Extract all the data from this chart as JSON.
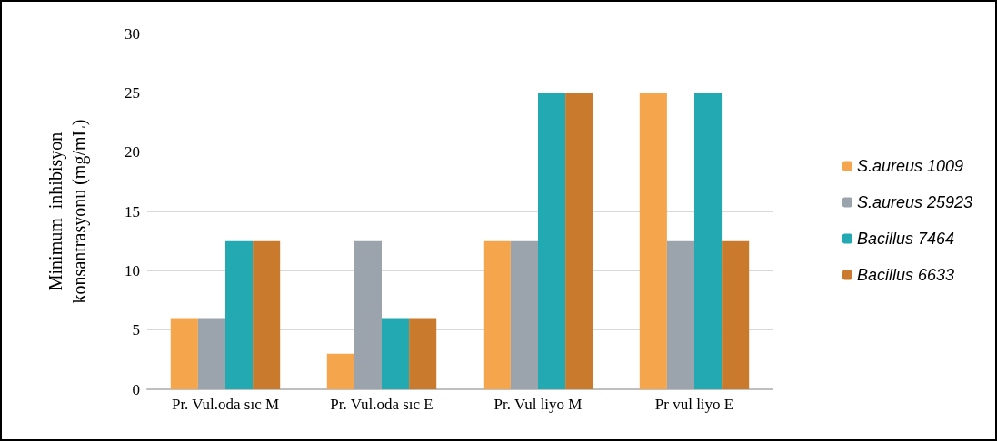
{
  "chart_data": {
    "type": "bar",
    "ylabel": "Minimum  inhibisyon\nkonsantrasyonu (mg/mL)",
    "categories": [
      "Pr. Vul.oda sıc M",
      "Pr. Vul.oda sıc E",
      "Pr. Vul liyo M",
      "Pr vul liyo E"
    ],
    "series": [
      {
        "name": "S.aureus 1009",
        "color": "#f5a64c",
        "values": [
          6,
          3,
          12.5,
          25
        ]
      },
      {
        "name": "S.aureus 25923",
        "color": "#9ba4ac",
        "values": [
          6,
          12.5,
          12.5,
          12.5
        ]
      },
      {
        "name": "Bacillus 7464",
        "color": "#22a9b1",
        "values": [
          12.5,
          6,
          25,
          25
        ]
      },
      {
        "name": "Bacillus 6633",
        "color": "#c97a2c",
        "values": [
          12.5,
          6,
          25,
          12.5
        ]
      }
    ],
    "ylim": [
      0,
      30
    ],
    "yticks": [
      0,
      5,
      10,
      15,
      20,
      25,
      30
    ],
    "grid": "y",
    "legend": "right"
  }
}
